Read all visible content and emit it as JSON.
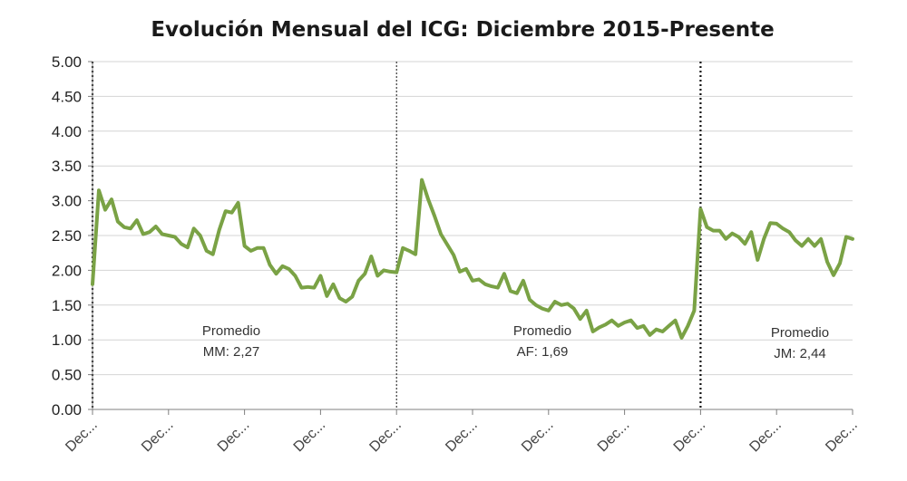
{
  "chart_data": {
    "type": "line",
    "title": "Evolución Mensual del ICG: Diciembre 2015-Presente",
    "xlabel": "",
    "ylabel": "",
    "ylim": [
      0,
      5
    ],
    "yticks": [
      "0.00",
      "0.50",
      "1.00",
      "1.50",
      "2.00",
      "2.50",
      "3.00",
      "3.50",
      "4.00",
      "4.50",
      "5.00"
    ],
    "xticks": [
      "Dec...",
      "Dec...",
      "Dec...",
      "Dec...",
      "Dec...",
      "Dec...",
      "Dec...",
      "Dec...",
      "Dec...",
      "Dec...",
      "Dec..."
    ],
    "grid": true,
    "line_color": "#7aa245",
    "series": [
      {
        "values": [
          1.8,
          3.15,
          2.87,
          3.02,
          2.7,
          2.62,
          2.6,
          2.72,
          2.52,
          2.55,
          2.63,
          2.52,
          2.5,
          2.48,
          2.38,
          2.33,
          2.6,
          2.5,
          2.28,
          2.23,
          2.58,
          2.85,
          2.83,
          2.97,
          2.35,
          2.28,
          2.32,
          2.32,
          2.08,
          1.95,
          2.06,
          2.02,
          1.92,
          1.75,
          1.76,
          1.75,
          1.92,
          1.63,
          1.8,
          1.6,
          1.55,
          1.62,
          1.85,
          1.95,
          2.2,
          1.92,
          2.0,
          1.98,
          1.97,
          2.32,
          2.28,
          2.23,
          3.3,
          3.02,
          2.78,
          2.52,
          2.37,
          2.22,
          1.98,
          2.02,
          1.85,
          1.87,
          1.8,
          1.77,
          1.75,
          1.95,
          1.7,
          1.67,
          1.85,
          1.58,
          1.5,
          1.45,
          1.42,
          1.55,
          1.5,
          1.52,
          1.45,
          1.3,
          1.42,
          1.12,
          1.18,
          1.22,
          1.28,
          1.2,
          1.25,
          1.28,
          1.17,
          1.2,
          1.07,
          1.15,
          1.12,
          1.2,
          1.28,
          1.03,
          1.2,
          1.42,
          2.88,
          2.62,
          2.57,
          2.57,
          2.45,
          2.53,
          2.48,
          2.38,
          2.55,
          2.15,
          2.45,
          2.68,
          2.67,
          2.6,
          2.55,
          2.43,
          2.35,
          2.45,
          2.35,
          2.45,
          2.12,
          1.93,
          2.1,
          2.48,
          2.45
        ]
      }
    ],
    "vlines": [
      {
        "at_index": 0,
        "style": "thick-dotted"
      },
      {
        "at_index": 48,
        "style": "thin-dotted"
      },
      {
        "at_index": 96,
        "style": "thick-dotted"
      }
    ],
    "annotations": [
      {
        "line1": "Promedio",
        "line2": "MM: 2,27"
      },
      {
        "line1": "Promedio",
        "line2": "AF: 1,69"
      },
      {
        "line1": "Promedio",
        "line2": "JM: 2,44"
      }
    ]
  }
}
